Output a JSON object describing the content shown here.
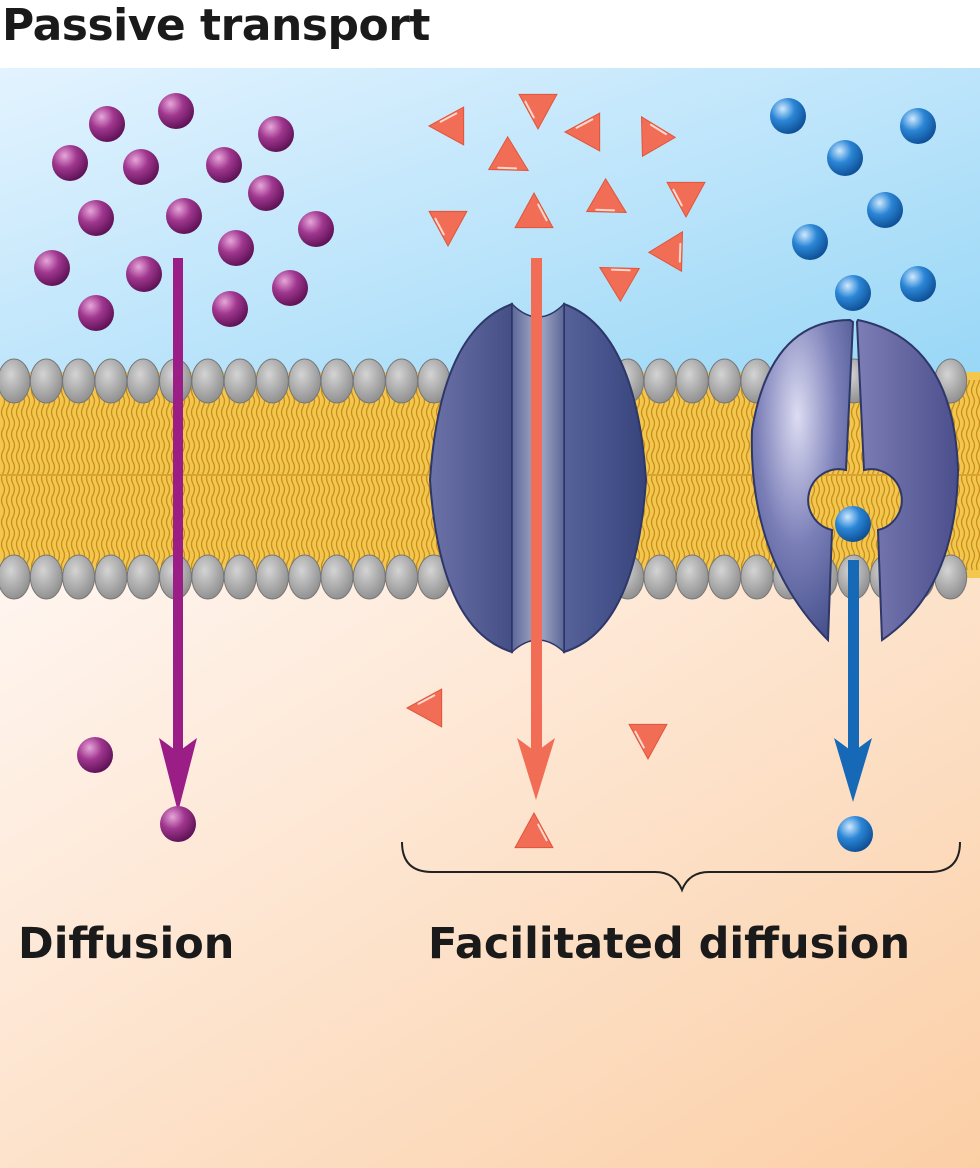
{
  "title": "Passive transport",
  "labels": {
    "diffusion": "Diffusion",
    "facilitated_diffusion": "Facilitated diffusion"
  },
  "colors": {
    "extracellular_top": "#dcefff",
    "extracellular_bottom": "#a9dcf5",
    "cytoplasm_top": "#fdf1ea",
    "cytoplasm_bottom": "#fbd2ad",
    "membrane_core": "#f2c54b",
    "phospholipid_head": "#a7a7a7",
    "solute_diffusion": "#972a86",
    "solute_channel": "#f26d55",
    "solute_carrier": "#1e78c8",
    "protein": "#4d5a91",
    "arrow_diffusion": "#9b1e86",
    "arrow_channel": "#f26d55",
    "arrow_carrier": "#1569b6"
  }
}
